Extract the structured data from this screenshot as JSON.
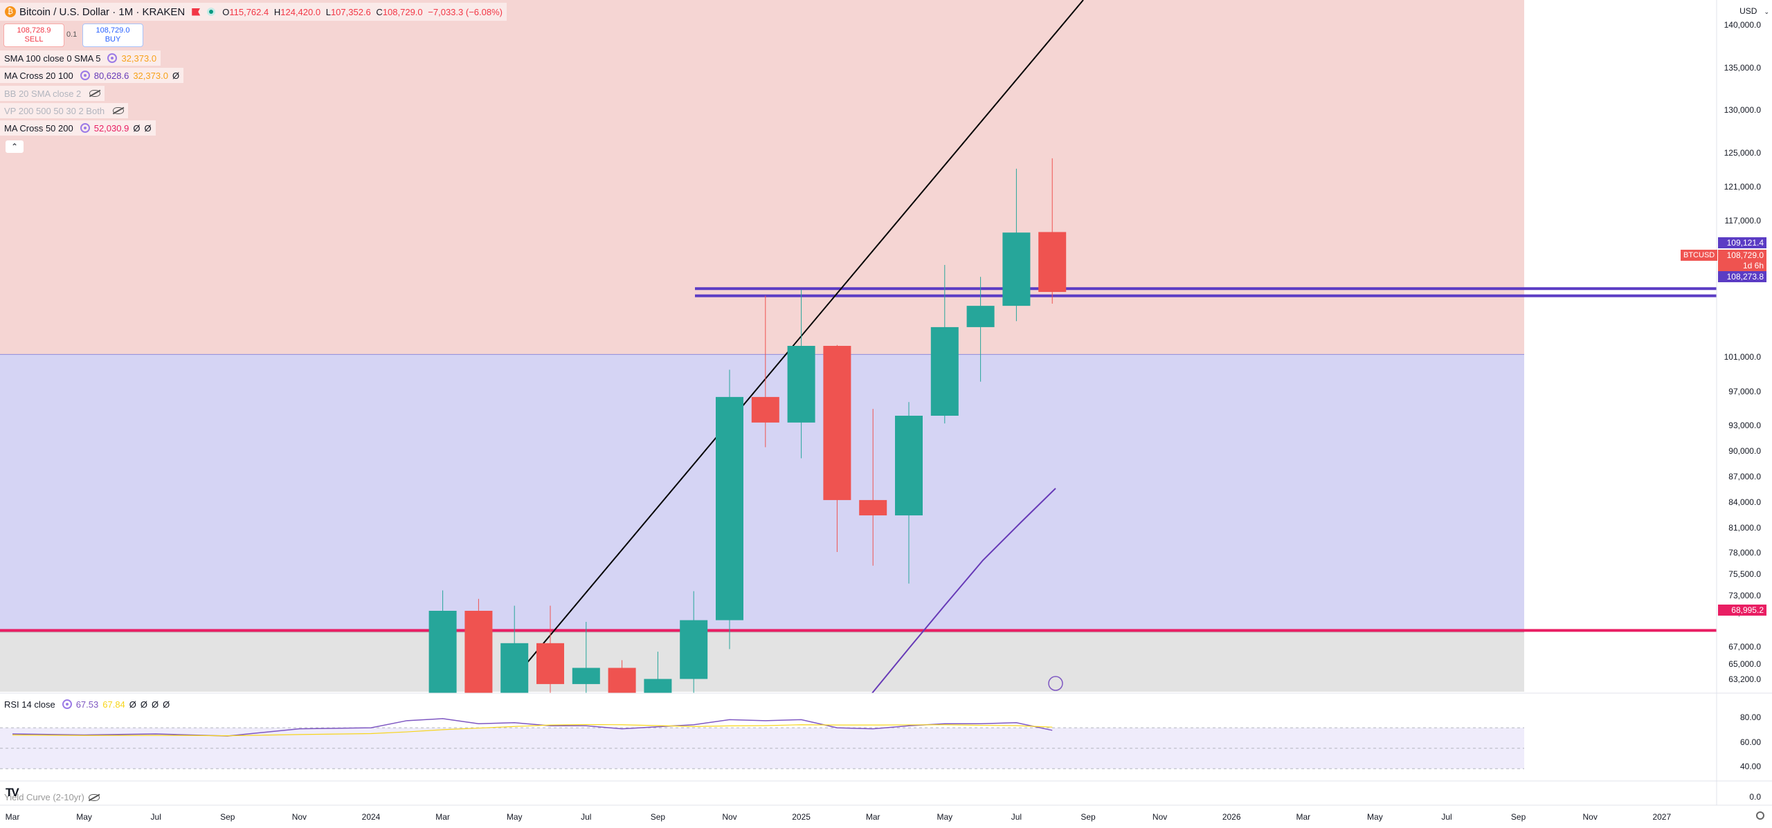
{
  "header": {
    "symbol_title": "Bitcoin / U.S. Dollar · 1M · KRAKEN",
    "ohlc": {
      "o_label": "O",
      "o_value": "115,762.4",
      "h_label": "H",
      "h_value": "124,420.0",
      "l_label": "L",
      "l_value": "107,352.6",
      "c_label": "C",
      "c_value": "108,729.0",
      "change": "−7,033.3 (−6.08%)"
    },
    "sell_price": "108,728.9",
    "sell_label": "SELL",
    "spread": "0.1",
    "buy_price": "108,729.0",
    "buy_label": "BUY",
    "currency": "USD",
    "colors": {
      "up": "#26a69a",
      "down": "#ef5350",
      "accent": "#2962ff"
    }
  },
  "indicators": [
    {
      "name": "SMA 100 close 0 SMA 5",
      "values": [
        "32,373.0"
      ],
      "colors": [
        "#f7a21b"
      ],
      "icon": "settings-circle-icon",
      "dim": false
    },
    {
      "name": "MA Cross 20 100",
      "values": [
        "80,628.6",
        "32,373.0",
        "Ø"
      ],
      "colors": [
        "#673ab7",
        "#f7a21b",
        "#131722"
      ],
      "icon": "settings-circle-icon",
      "dim": false
    },
    {
      "name": "BB 20 SMA close 2",
      "values": [],
      "colors": [],
      "icon": "hidden-eye-icon",
      "dim": true
    },
    {
      "name": "VP 200 500 50 30 2 Both",
      "values": [],
      "colors": [],
      "icon": "hidden-eye-icon",
      "dim": true
    },
    {
      "name": "MA Cross 50 200",
      "values": [
        "52,030.9",
        "Ø",
        "Ø"
      ],
      "colors": [
        "#e91e63",
        "#131722",
        "#131722"
      ],
      "icon": "settings-circle-icon",
      "dim": false
    }
  ],
  "collapse_icon": "chevron-up-icon",
  "price_axis": {
    "labels": [
      "140,000.0",
      "135,000.0",
      "130,000.0",
      "125,000.0",
      "121,000.0",
      "117,000.0",
      "113,000.0",
      "101,000.0",
      "97,000.0",
      "93,000.0",
      "90,000.0",
      "87,000.0",
      "84,000.0",
      "81,000.0",
      "78,000.0",
      "75,500.0",
      "73,000.0",
      "71,000.0",
      "67,000.0",
      "65,000.0",
      "63,200.0"
    ],
    "tags": [
      {
        "text": "109,121.4",
        "color": "#5b3cc4"
      },
      {
        "text": "108,729.0",
        "color": "#ef5350"
      },
      {
        "text": "1d 6h",
        "color": "#ef5350"
      },
      {
        "text": "108,273.8",
        "color": "#5b3cc4"
      },
      {
        "text": "68,995.2",
        "color": "#e91e63"
      }
    ],
    "symbol_tag": "BTCUSD"
  },
  "rsi": {
    "title": "RSI 14 close",
    "value1": "67.53",
    "value2": "67.84",
    "extras": [
      "Ø",
      "Ø",
      "Ø",
      "Ø"
    ],
    "axis_labels": [
      "80.00",
      "60.00",
      "40.00",
      "0.0"
    ],
    "yield_label": "Yield Curve (2-10yr)"
  },
  "time_axis": {
    "labels": [
      "Mar",
      "May",
      "Jul",
      "Sep",
      "Nov",
      "2024",
      "Mar",
      "May",
      "Jul",
      "Sep",
      "Nov",
      "2025",
      "Mar",
      "May",
      "Jul",
      "Sep",
      "Nov",
      "2026",
      "Mar",
      "May",
      "Jul",
      "Sep",
      "Nov",
      "2027"
    ]
  },
  "chart_data": {
    "type": "candlestick",
    "timeframe": "1M",
    "ylim": [
      61800,
      143000
    ],
    "candles": [
      {
        "t": "2024-03",
        "o": 61200,
        "h": 73700,
        "l": 59000,
        "c": 71300
      },
      {
        "t": "2024-04",
        "o": 71300,
        "h": 72700,
        "l": 59100,
        "c": 60600
      },
      {
        "t": "2024-05",
        "o": 60600,
        "h": 71900,
        "l": 56500,
        "c": 67500
      },
      {
        "t": "2024-06",
        "o": 67500,
        "h": 71900,
        "l": 58400,
        "c": 62700
      },
      {
        "t": "2024-07",
        "o": 62700,
        "h": 70000,
        "l": 53500,
        "c": 64600
      },
      {
        "t": "2024-08",
        "o": 64600,
        "h": 65500,
        "l": 49000,
        "c": 58900
      },
      {
        "t": "2024-09",
        "o": 58900,
        "h": 66500,
        "l": 52500,
        "c": 63300
      },
      {
        "t": "2024-10",
        "o": 63300,
        "h": 73600,
        "l": 58800,
        "c": 70200
      },
      {
        "t": "2024-11",
        "o": 70200,
        "h": 99600,
        "l": 66800,
        "c": 96400
      },
      {
        "t": "2024-12",
        "o": 96400,
        "h": 108300,
        "l": 90500,
        "c": 93400
      },
      {
        "t": "2025-01",
        "o": 93400,
        "h": 109000,
        "l": 89200,
        "c": 102400
      },
      {
        "t": "2025-02",
        "o": 102400,
        "h": 102500,
        "l": 78200,
        "c": 84300
      },
      {
        "t": "2025-03",
        "o": 84300,
        "h": 95000,
        "l": 76600,
        "c": 82500
      },
      {
        "t": "2025-04",
        "o": 82500,
        "h": 95800,
        "l": 74500,
        "c": 94200
      },
      {
        "t": "2025-05",
        "o": 94200,
        "h": 111900,
        "l": 93300,
        "c": 104600
      },
      {
        "t": "2025-06",
        "o": 104600,
        "h": 110500,
        "l": 98200,
        "c": 107100
      },
      {
        "t": "2025-07",
        "o": 107100,
        "h": 123200,
        "l": 105300,
        "c": 115700
      },
      {
        "t": "2025-08",
        "o": 115762,
        "h": 124420,
        "l": 107352,
        "c": 108729
      }
    ],
    "rsi": [
      {
        "t": "2023-03",
        "v": 64
      },
      {
        "t": "2023-05",
        "v": 63
      },
      {
        "t": "2023-07",
        "v": 64
      },
      {
        "t": "2023-09",
        "v": 62
      },
      {
        "t": "2023-11",
        "v": 69
      },
      {
        "t": "2024-01",
        "v": 70
      },
      {
        "t": "2024-02",
        "v": 77
      },
      {
        "t": "2024-03",
        "v": 79
      },
      {
        "t": "2024-04",
        "v": 74
      },
      {
        "t": "2024-05",
        "v": 75
      },
      {
        "t": "2024-06",
        "v": 72
      },
      {
        "t": "2024-07",
        "v": 72
      },
      {
        "t": "2024-08",
        "v": 69
      },
      {
        "t": "2024-09",
        "v": 71
      },
      {
        "t": "2024-10",
        "v": 73
      },
      {
        "t": "2024-11",
        "v": 78
      },
      {
        "t": "2024-12",
        "v": 77
      },
      {
        "t": "2025-01",
        "v": 78
      },
      {
        "t": "2025-02",
        "v": 70
      },
      {
        "t": "2025-03",
        "v": 69
      },
      {
        "t": "2025-04",
        "v": 72
      },
      {
        "t": "2025-05",
        "v": 74
      },
      {
        "t": "2025-06",
        "v": 74
      },
      {
        "t": "2025-07",
        "v": 75
      },
      {
        "t": "2025-08",
        "v": 67.53
      }
    ],
    "rsi_ma": 67.84,
    "horizontal_levels": [
      {
        "value": 109121.4,
        "color": "#5b3cc4"
      },
      {
        "value": 108273.8,
        "color": "#5b3cc4"
      },
      {
        "value": 68995.2,
        "color": "#e91e63"
      }
    ],
    "zones": [
      {
        "from": 101400,
        "to": 143000,
        "color": "#f5d5d3"
      },
      {
        "from": 68800,
        "to": 101400,
        "color": "#d5d4f4"
      },
      {
        "from": 61800,
        "to": 68800,
        "color": "#e3e3e3"
      }
    ]
  }
}
